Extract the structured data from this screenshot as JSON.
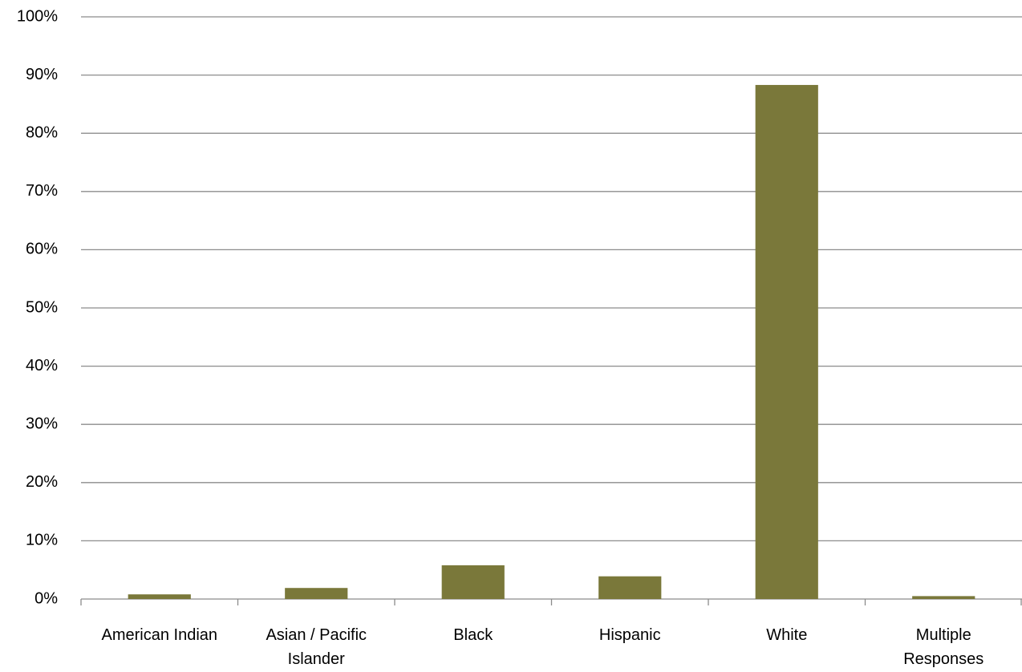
{
  "chart_data": {
    "type": "bar",
    "categories": [
      "American Indian",
      "Asian / Pacific\nIslander",
      "Black",
      "Hispanic",
      "White",
      "Multiple\nResponses"
    ],
    "values": [
      0.8,
      1.9,
      5.8,
      3.9,
      88.3,
      0.5
    ],
    "color": "#7a783a",
    "ylim": [
      0,
      100
    ],
    "yticks": [
      {
        "value": 0,
        "label": "0%"
      },
      {
        "value": 10,
        "label": "10%"
      },
      {
        "value": 20,
        "label": "20%"
      },
      {
        "value": 30,
        "label": "30%"
      },
      {
        "value": 40,
        "label": "40%"
      },
      {
        "value": 50,
        "label": "50%"
      },
      {
        "value": 60,
        "label": "60%"
      },
      {
        "value": 70,
        "label": "70%"
      },
      {
        "value": 80,
        "label": "80%"
      },
      {
        "value": 90,
        "label": "90%"
      },
      {
        "value": 100,
        "label": "100%"
      }
    ],
    "grid": true
  }
}
